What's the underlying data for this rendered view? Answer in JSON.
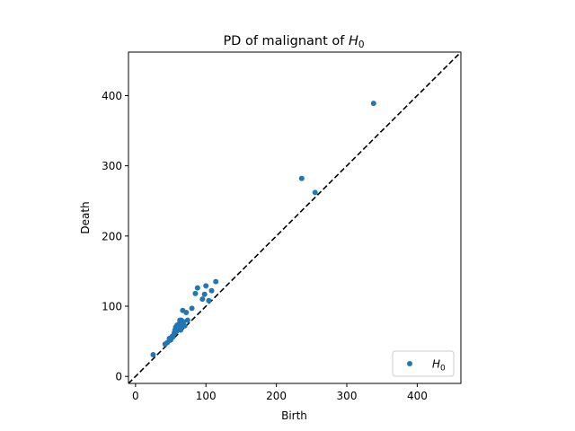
{
  "chart_data": {
    "type": "scatter",
    "title": "PD of malignant of ",
    "title_math": "H",
    "title_math_sub": "0",
    "xlabel": "Birth",
    "ylabel": "Death",
    "xlim": [
      -10,
      462
    ],
    "ylim": [
      -10,
      462
    ],
    "x_ticks": [
      0,
      100,
      200,
      300,
      400
    ],
    "y_ticks": [
      0,
      100,
      200,
      300,
      400
    ],
    "x_tick_labels": [
      "0",
      "100",
      "200",
      "300",
      "400"
    ],
    "y_tick_labels": [
      "0",
      "100",
      "200",
      "300",
      "400"
    ],
    "diagonal": {
      "style": "dashed",
      "color": "#000000"
    },
    "grid": false,
    "legend_position": "lower-right",
    "series": [
      {
        "name": "H",
        "name_sub": "0",
        "color": "#1f77b4",
        "points": [
          [
            25,
            31
          ],
          [
            42,
            46
          ],
          [
            45,
            48
          ],
          [
            48,
            54
          ],
          [
            50,
            52
          ],
          [
            52,
            57
          ],
          [
            53,
            56
          ],
          [
            55,
            62
          ],
          [
            56,
            66
          ],
          [
            57,
            70
          ],
          [
            58,
            64
          ],
          [
            59,
            73
          ],
          [
            60,
            68
          ],
          [
            61,
            71
          ],
          [
            62,
            75
          ],
          [
            63,
            80
          ],
          [
            64,
            66
          ],
          [
            65,
            80
          ],
          [
            66,
            73
          ],
          [
            67,
            94
          ],
          [
            68,
            78
          ],
          [
            70,
            72
          ],
          [
            72,
            91
          ],
          [
            74,
            80
          ],
          [
            80,
            97
          ],
          [
            85,
            118
          ],
          [
            88,
            126
          ],
          [
            95,
            110
          ],
          [
            98,
            117
          ],
          [
            100,
            129
          ],
          [
            104,
            108
          ],
          [
            108,
            122
          ],
          [
            114,
            135
          ],
          [
            236,
            282
          ],
          [
            255,
            262
          ],
          [
            338,
            389
          ]
        ]
      }
    ]
  }
}
